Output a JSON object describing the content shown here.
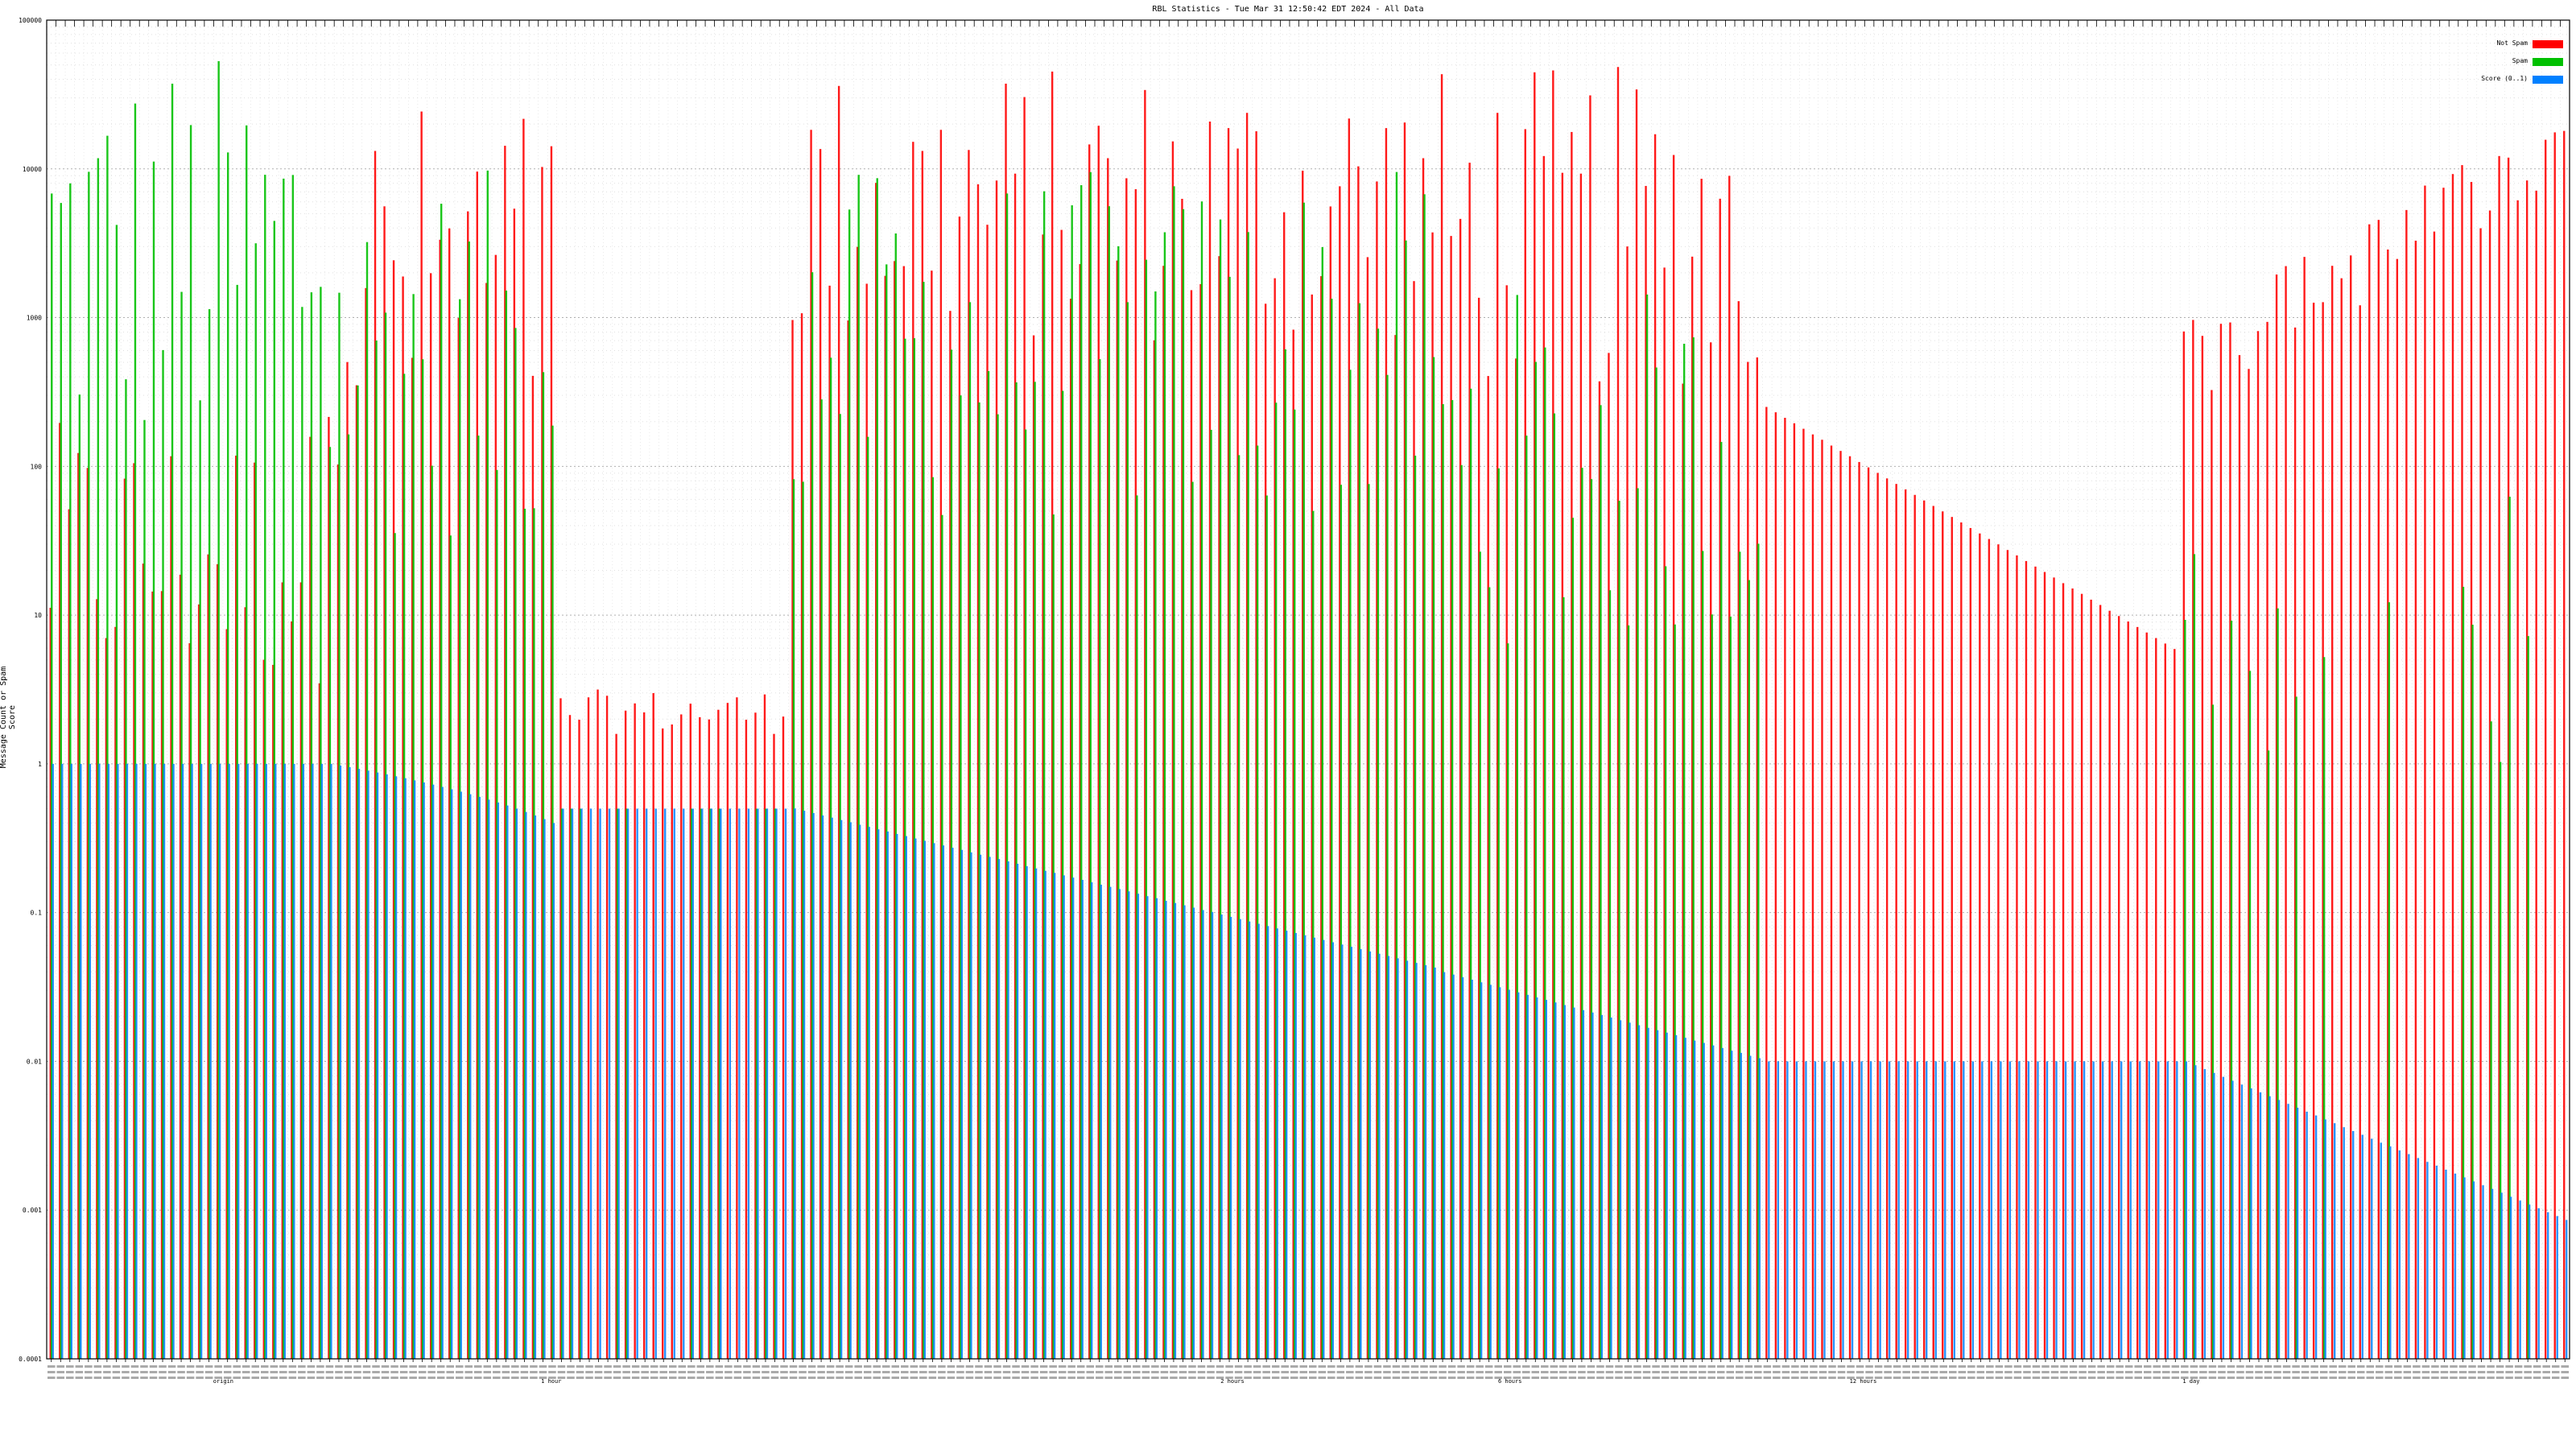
{
  "chart_data": {
    "type": "bar",
    "title": "RBL Statistics - Tue Mar 31 12:50:42 EDT 2024 - All Data",
    "xlabel": "",
    "ylabel": "Message Count or Spam Score",
    "y_scale": "log",
    "ylim": [
      0.0001,
      100000
    ],
    "y_ticks": [
      "0.0001",
      "0.001",
      "0.01",
      "0.1",
      "1",
      "10",
      "100",
      "1000",
      "10000",
      "100000"
    ],
    "grid": true,
    "legend_position": "top-right",
    "x_tick_note": "x tick labels are dense and illegible; a few readable fragments are listed",
    "x_label_fragments": [
      "origin",
      "1 hour",
      "2 hours",
      "6 hours",
      "12 hours",
      "1 day"
    ],
    "series": [
      {
        "name": "Not Spam",
        "color": "#ff0000",
        "values": []
      },
      {
        "name": "Spam",
        "color": "#00c000",
        "values": []
      },
      {
        "name": "Score (0..1)",
        "color": "#0080ff",
        "values": []
      }
    ],
    "categories_count": 272
  }
}
